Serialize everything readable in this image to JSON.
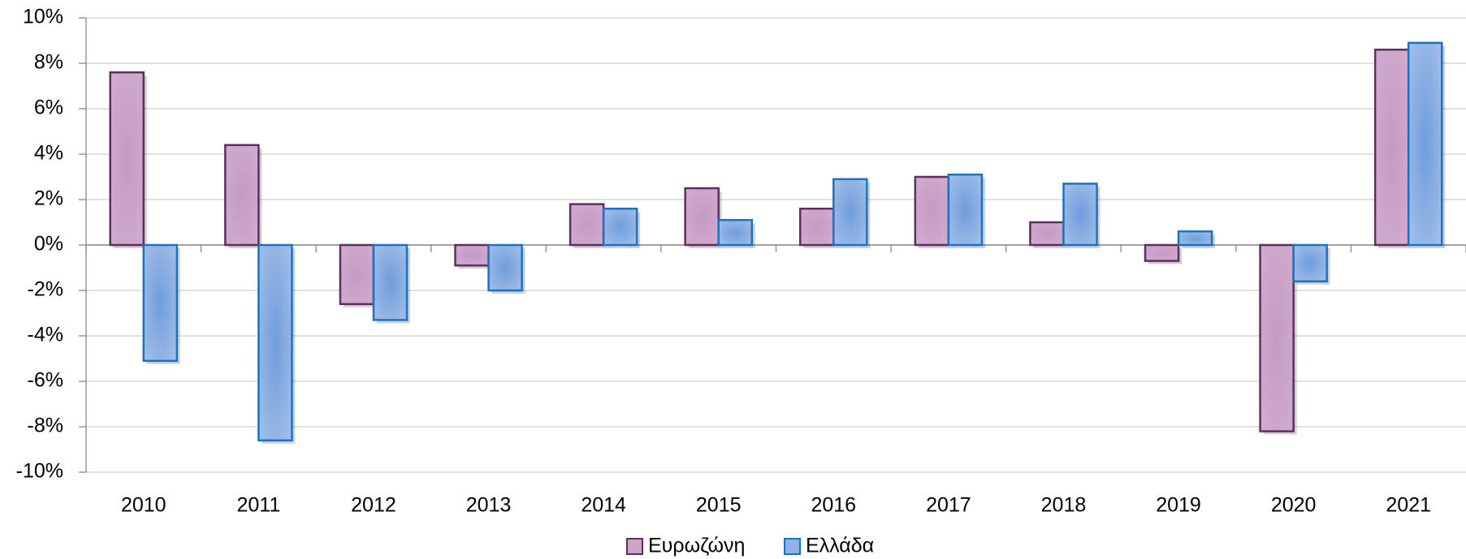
{
  "chart_data": {
    "type": "bar",
    "categories": [
      "2010",
      "2011",
      "2012",
      "2013",
      "2014",
      "2015",
      "2016",
      "2017",
      "2018",
      "2019",
      "2020",
      "2021"
    ],
    "series": [
      {
        "name": "Ευρωζώνη",
        "color": "#cda4cb",
        "values": [
          7.6,
          4.4,
          -2.6,
          -0.9,
          1.8,
          2.5,
          1.6,
          3.0,
          1.0,
          -0.7,
          -8.2,
          8.6
        ]
      },
      {
        "name": "Ελλάδα",
        "color": "#8fb2e2",
        "values": [
          -5.1,
          -8.6,
          -3.3,
          -2.0,
          1.6,
          1.1,
          2.9,
          3.1,
          2.7,
          0.6,
          -1.6,
          8.9
        ]
      }
    ],
    "ylim": [
      -10,
      10
    ],
    "yticks": [
      {
        "value": -10,
        "label": "-10%"
      },
      {
        "value": -8,
        "label": "-8%"
      },
      {
        "value": -6,
        "label": "-6%"
      },
      {
        "value": -4,
        "label": "-4%"
      },
      {
        "value": -2,
        "label": "-2%"
      },
      {
        "value": 0,
        "label": "0%"
      },
      {
        "value": 2,
        "label": "2%"
      },
      {
        "value": 4,
        "label": "4%"
      },
      {
        "value": 6,
        "label": "6%"
      },
      {
        "value": 8,
        "label": "8%"
      },
      {
        "value": 10,
        "label": "10%"
      }
    ],
    "grid": true,
    "legend": "bottom"
  }
}
